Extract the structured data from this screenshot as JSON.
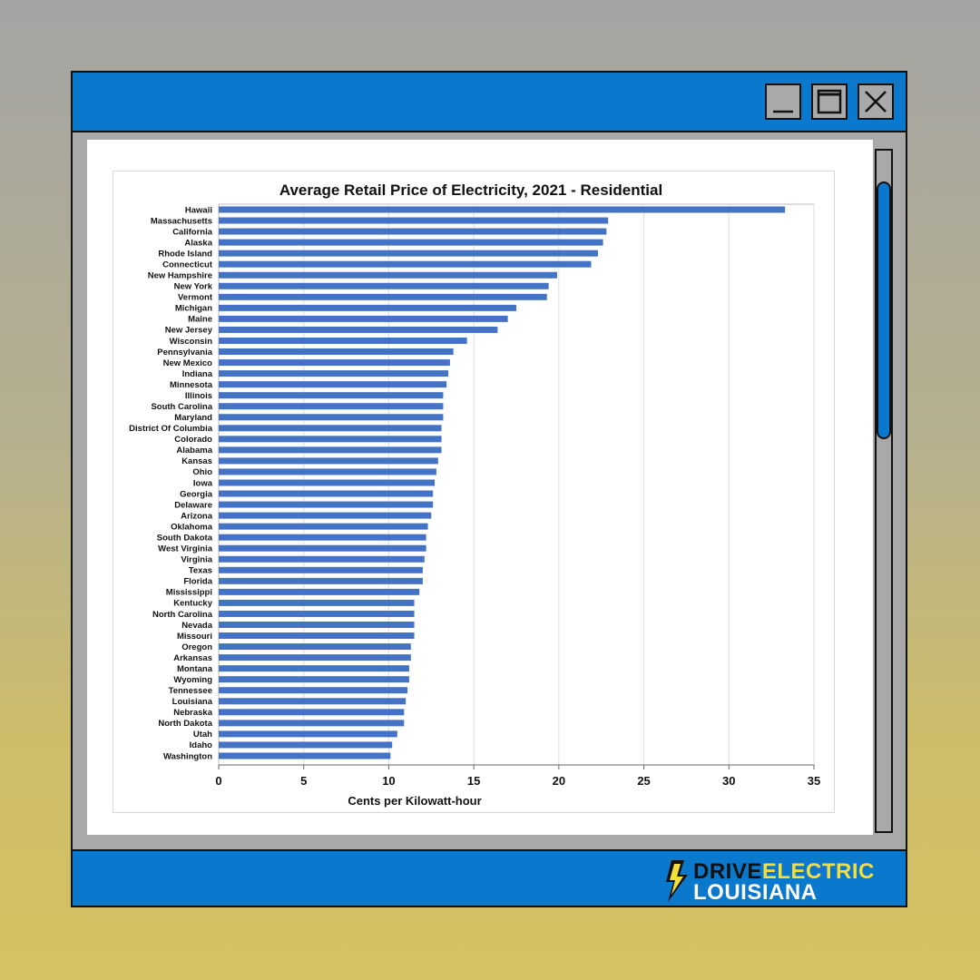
{
  "window": {
    "minimize_icon": "minimize-icon",
    "maximize_icon": "maximize-icon",
    "close_icon": "close-icon"
  },
  "brand": {
    "line1a": "DRIVE",
    "line1b": "ELECTRIC",
    "line2": "LOUISIANA",
    "icon": "lightning-bolt-icon",
    "colors": {
      "accent_blue": "#0a78cc",
      "accent_yellow": "#f2df3e"
    }
  },
  "chart_data": {
    "type": "bar",
    "orientation": "horizontal",
    "title": "Average Retail Price of Electricity, 2021 - Residential",
    "xlabel": "Cents per Kilowatt-hour",
    "ylabel": "",
    "xlim": [
      0,
      35
    ],
    "xticks": [
      0,
      5,
      10,
      15,
      20,
      25,
      30,
      35
    ],
    "grid": true,
    "bar_color": "#4472c4",
    "categories": [
      "Hawaii",
      "Massachusetts",
      "California",
      "Alaska",
      "Rhode Island",
      "Connecticut",
      "New Hampshire",
      "New York",
      "Vermont",
      "Michigan",
      "Maine",
      "New Jersey",
      "Wisconsin",
      "Pennsylvania",
      "New Mexico",
      "Indiana",
      "Minnesota",
      "Illinois",
      "South Carolina",
      "Maryland",
      "District Of Columbia",
      "Colorado",
      "Alabama",
      "Kansas",
      "Ohio",
      "Iowa",
      "Georgia",
      "Delaware",
      "Arizona",
      "Oklahoma",
      "South Dakota",
      "West Virginia",
      "Virginia",
      "Texas",
      "Florida",
      "Mississippi",
      "Kentucky",
      "North Carolina",
      "Nevada",
      "Missouri",
      "Oregon",
      "Arkansas",
      "Montana",
      "Wyoming",
      "Tennessee",
      "Louisiana",
      "Nebraska",
      "North Dakota",
      "Utah",
      "Idaho",
      "Washington"
    ],
    "values": [
      33.3,
      22.9,
      22.8,
      22.6,
      22.3,
      21.9,
      19.9,
      19.4,
      19.3,
      17.5,
      17.0,
      16.4,
      14.6,
      13.8,
      13.6,
      13.5,
      13.4,
      13.2,
      13.2,
      13.2,
      13.1,
      13.1,
      13.1,
      12.9,
      12.8,
      12.7,
      12.6,
      12.6,
      12.5,
      12.3,
      12.2,
      12.2,
      12.1,
      12.0,
      12.0,
      11.8,
      11.5,
      11.5,
      11.5,
      11.5,
      11.3,
      11.3,
      11.2,
      11.2,
      11.1,
      11.0,
      10.9,
      10.9,
      10.5,
      10.2,
      10.1
    ]
  }
}
